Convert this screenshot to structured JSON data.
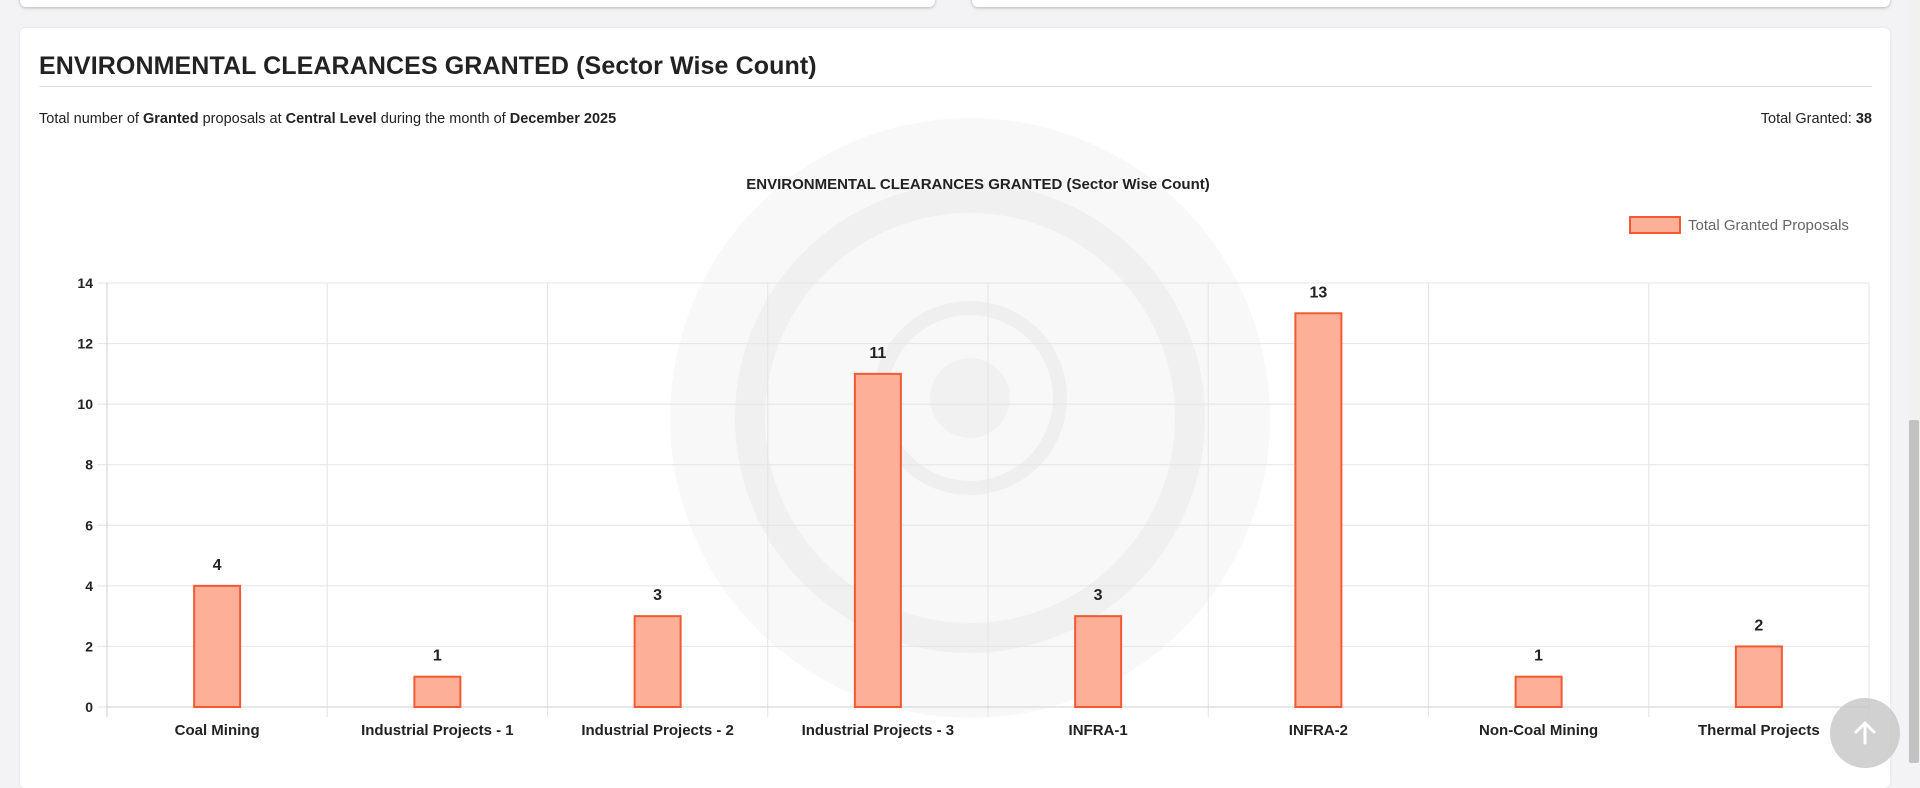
{
  "section": {
    "title": "ENVIRONMENTAL CLEARANCES GRANTED (Sector Wise Count)",
    "summary": {
      "prefix": "Total number of",
      "status": "Granted",
      "middle": "proposals at",
      "level": "Central Level",
      "suffix": "during the month of",
      "month": "December 2025"
    },
    "total_label": "Total Granted:",
    "total_value": "38"
  },
  "colors": {
    "bar_fill": "#fdaf98",
    "bar_stroke": "#f15a33",
    "grid": "#e4e4e4",
    "text": "#222222"
  },
  "icons": {
    "back_to_top": "arrow-up-icon",
    "watermark": "parivesh-emblem"
  },
  "chart_data": {
    "type": "bar",
    "title": "ENVIRONMENTAL CLEARANCES GRANTED (Sector Wise Count)",
    "categories": [
      "Coal Mining",
      "Industrial Projects - 1",
      "Industrial Projects - 2",
      "Industrial Projects - 3",
      "INFRA-1",
      "INFRA-2",
      "Non-Coal Mining",
      "Thermal Projects"
    ],
    "series": [
      {
        "name": "Total Granted Proposals",
        "values": [
          4,
          1,
          3,
          11,
          3,
          13,
          1,
          2
        ]
      }
    ],
    "xlabel": "",
    "ylabel": "",
    "ylim": [
      0,
      14
    ],
    "yticks": [
      0,
      2,
      4,
      6,
      8,
      10,
      12,
      14
    ],
    "grid": true,
    "legend_position": "top-right",
    "data_labels": true
  }
}
